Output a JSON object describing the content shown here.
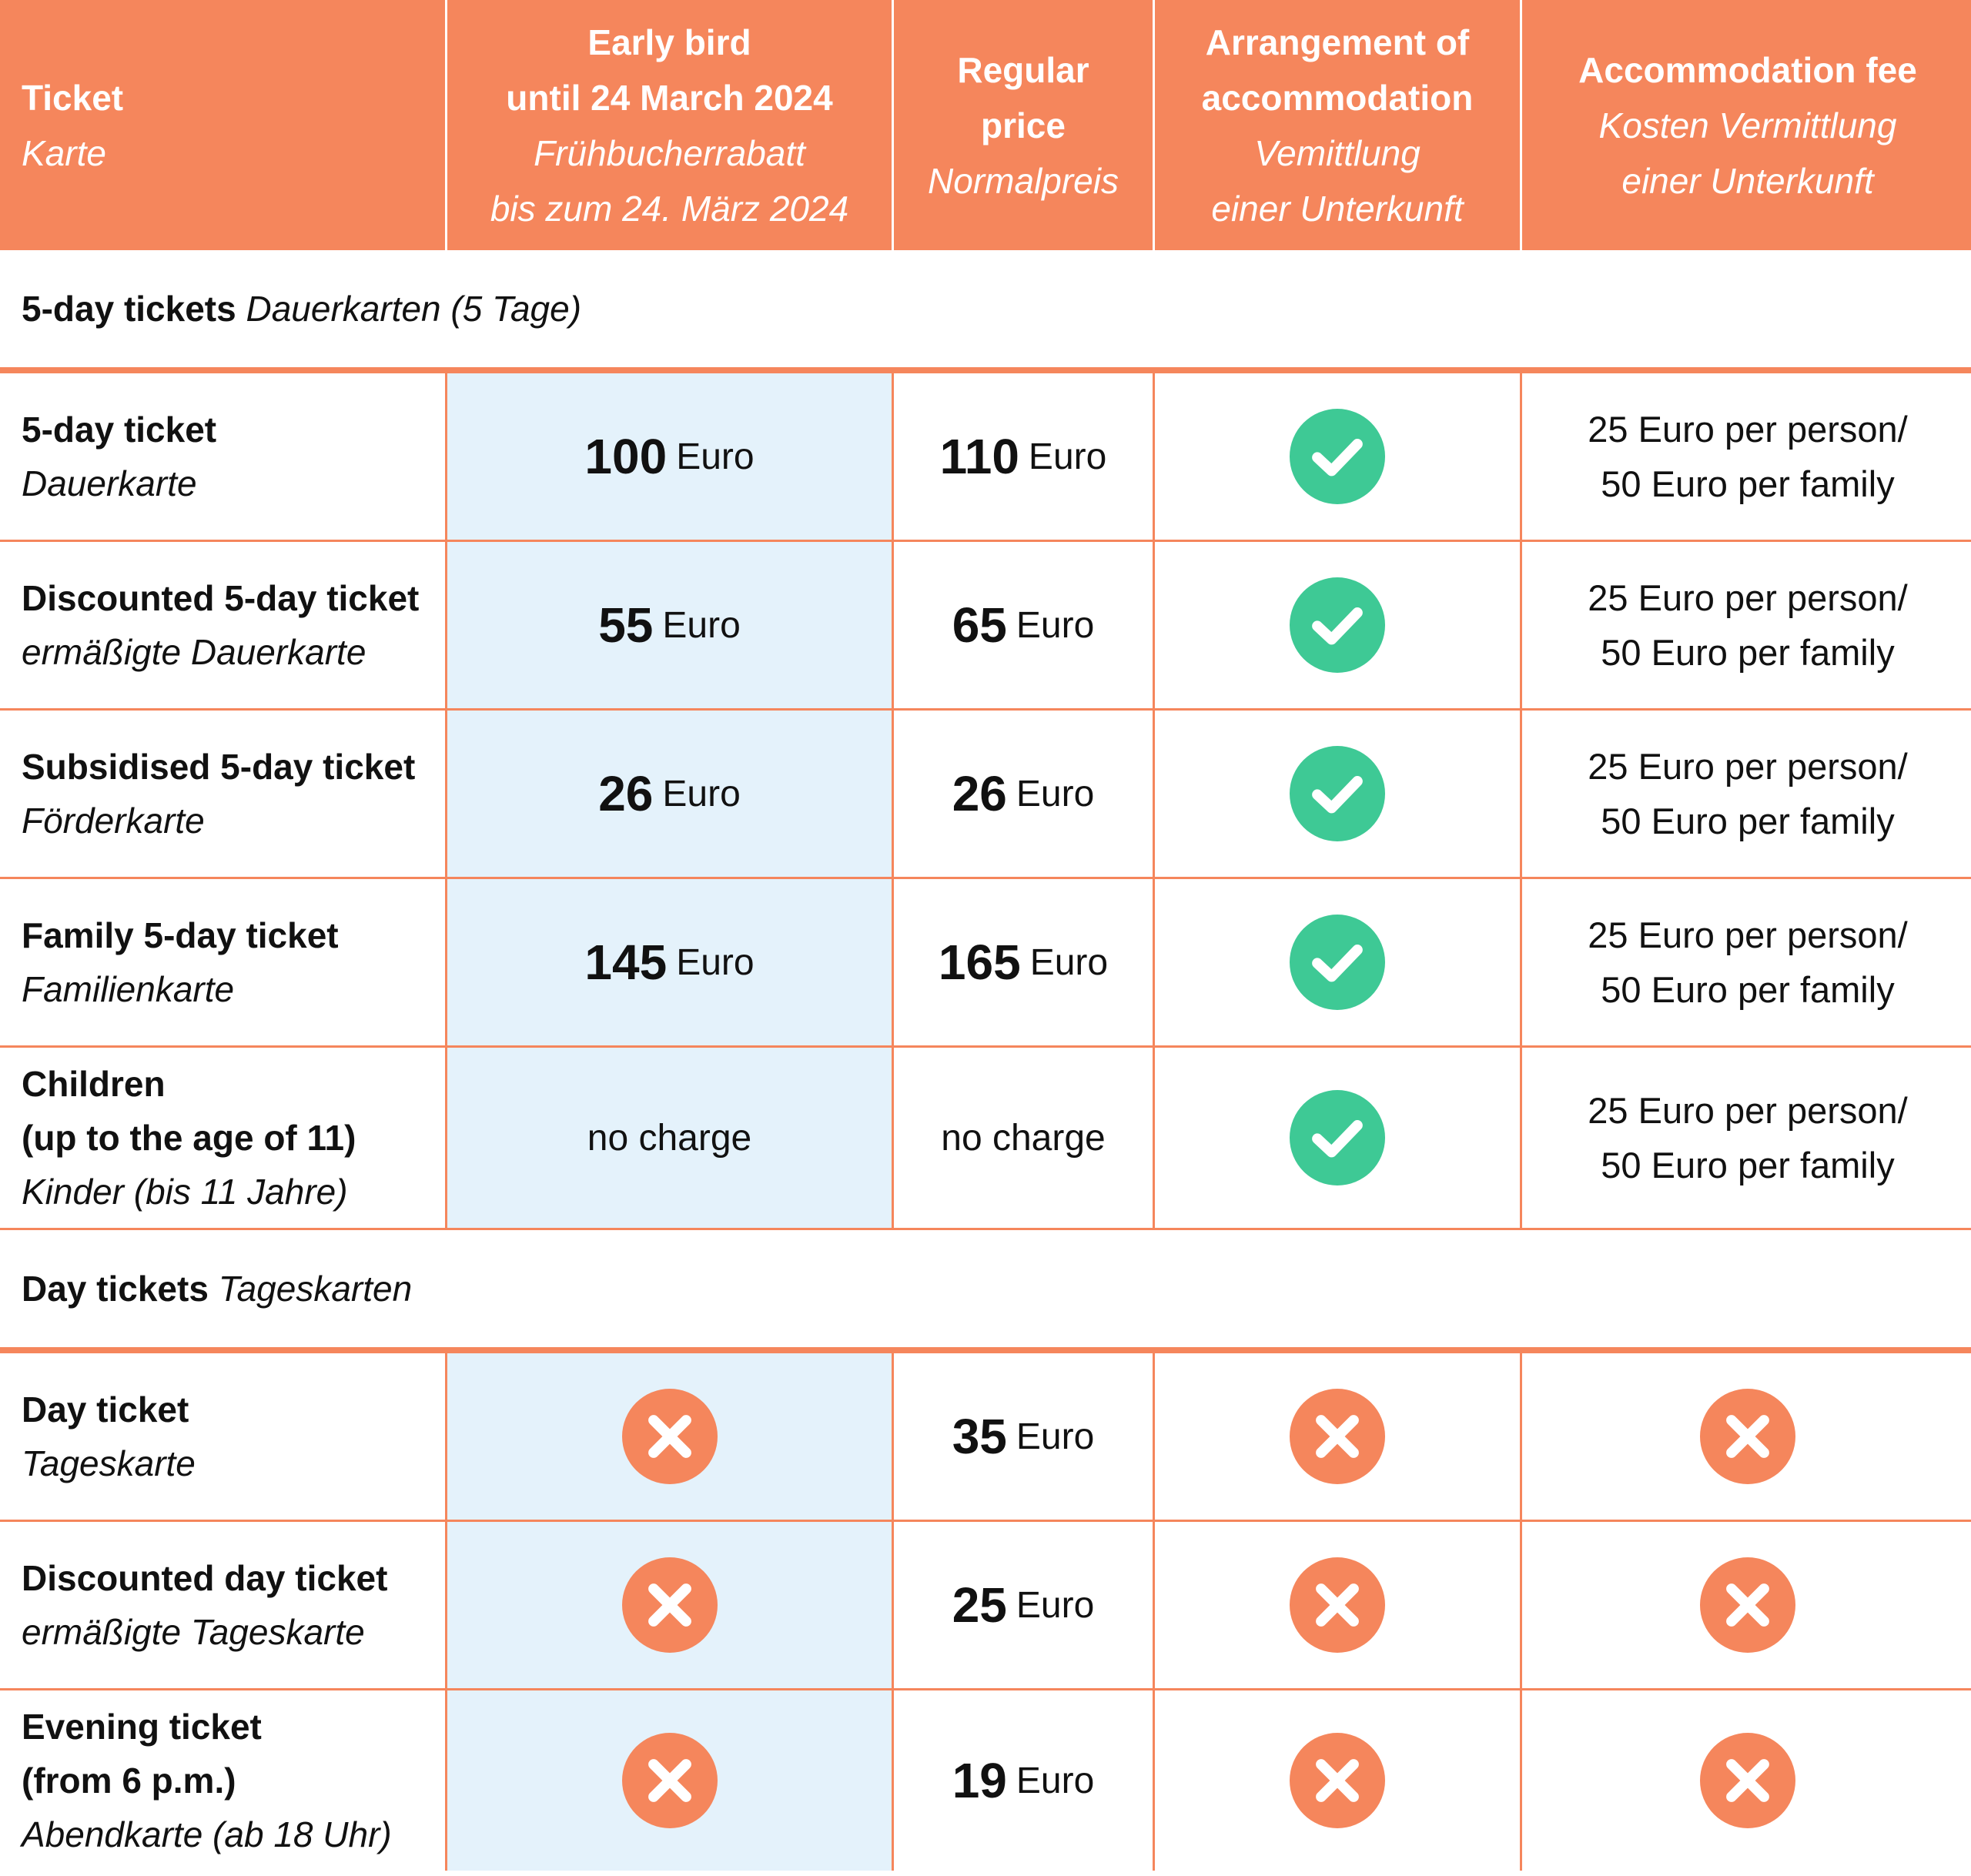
{
  "header": {
    "ticket": {
      "bold": "Ticket",
      "italic": "Karte"
    },
    "early_bird": {
      "bold1": "Early bird",
      "bold2": "until 24 March 2024",
      "italic1": "Frühbucherrabatt",
      "italic2": "bis zum 24. März 2024"
    },
    "regular": {
      "bold1": "Regular",
      "bold2": "price",
      "italic1": "Normalpreis"
    },
    "arrangement": {
      "bold1": "Arrangement of",
      "bold2": "accommodation",
      "italic1": "Vemittlung",
      "italic2": "einer Unterkunft"
    },
    "fee": {
      "bold1": "Accommodation fee",
      "italic1": "Kosten Vermittlung",
      "italic2": "einer Unterkunft"
    }
  },
  "sections": {
    "five_day": {
      "bold": "5-day tickets",
      "italic": "Dauerkarten (5 Tage)"
    },
    "day": {
      "bold": "Day tickets",
      "italic": "Tageskarten"
    }
  },
  "unit": "Euro",
  "no_charge": "no charge",
  "fee_line1": "25 Euro per person/",
  "fee_line2": "50 Euro per family",
  "rows": [
    {
      "name_bold": "5-day ticket",
      "name_italic": "Dauerkarte",
      "early": "100",
      "regular": "110"
    },
    {
      "name_bold": "Discounted 5-day ticket",
      "name_italic": "ermäßigte Dauerkarte",
      "early": "55",
      "regular": "65"
    },
    {
      "name_bold": "Subsidised 5-day ticket",
      "name_italic": "Förderkarte",
      "early": "26",
      "regular": "26"
    },
    {
      "name_bold": "Family 5-day ticket",
      "name_italic": "Familienkarte",
      "early": "145",
      "regular": "165"
    },
    {
      "name_bold1": "Children",
      "name_bold2": "(up to the age of 11)",
      "name_italic": "Kinder (bis 11 Jahre)"
    },
    {
      "name_bold": "Day ticket",
      "name_italic": "Tageskarte",
      "regular": "35"
    },
    {
      "name_bold": "Discounted day ticket",
      "name_italic": "ermäßigte Tageskarte",
      "regular": "25"
    },
    {
      "name_bold1": "Evening ticket",
      "name_bold2": "(from 6 p.m.)",
      "name_italic": "Abendkarte (ab 18 Uhr)",
      "regular": "19"
    }
  ],
  "icons": {
    "check": "check-circle-icon",
    "cross": "cross-circle-icon"
  },
  "colors": {
    "accent": "#f5865c",
    "early_bg": "#e4f2fb",
    "check": "#3ec995",
    "cross": "#f5865c"
  }
}
